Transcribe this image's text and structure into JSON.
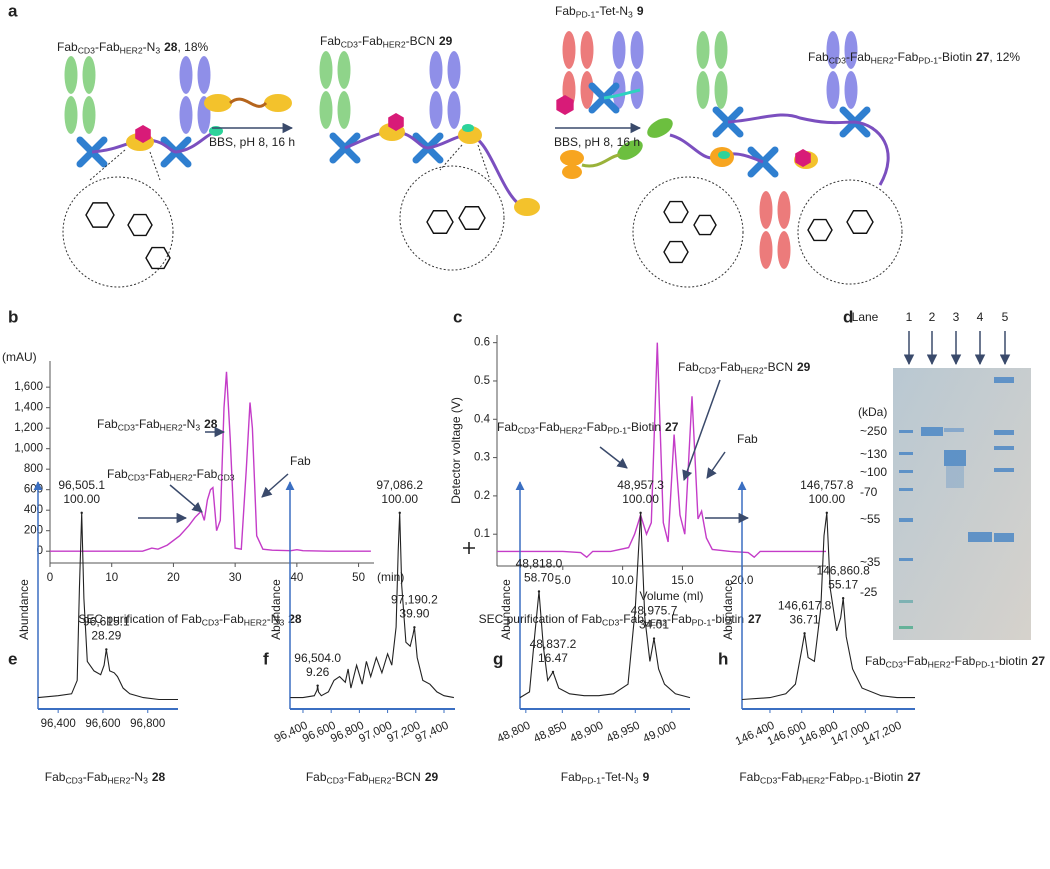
{
  "panel_letters": [
    "a",
    "b",
    "c",
    "d",
    "e",
    "f",
    "g",
    "h"
  ],
  "scheme": {
    "compounds": [
      {
        "parts": [
          "Fab",
          "CD3",
          "-Fab",
          "HER2",
          "-N",
          "3"
        ],
        "num": "28",
        "tail": ", 18%"
      },
      {
        "parts": [
          "Fab",
          "CD3",
          "-Fab",
          "HER2",
          "-BCN"
        ],
        "num": "29"
      },
      {
        "parts": [
          "Fab",
          "PD-1",
          "-Tet-N",
          "3"
        ],
        "num": "9"
      },
      {
        "parts": [
          "Fab",
          "CD3",
          "-Fab",
          "HER2",
          "-Fab",
          "PD-1",
          "-Biotin"
        ],
        "num": "27",
        "tail": ", 12%"
      }
    ],
    "conditions": [
      "BBS, pH 8, 16 h",
      "BBS, pH 8, 16 h"
    ]
  },
  "chart_data": [
    {
      "type": "line",
      "ylabel": "(mAU)",
      "xlabel": "(min)",
      "color": "#c43cc8",
      "xlim": [
        0,
        52.5
      ],
      "ylim": [
        -115,
        1855
      ],
      "xticks": [
        0,
        10,
        20,
        30,
        40,
        50
      ],
      "yticks": [
        0,
        200,
        400,
        600,
        800,
        {
          "value": 1000,
          "label": "1,000"
        },
        {
          "value": 1200,
          "label": "1,200"
        },
        {
          "value": 1400,
          "label": "1,400"
        },
        {
          "value": 1600,
          "label": "1,600"
        }
      ],
      "x": [
        0,
        15,
        16.5,
        17.5,
        19,
        21,
        22.5,
        23.5,
        24.5,
        25,
        25.5,
        26,
        26.4,
        27,
        27.6,
        28.2,
        28.6,
        29.2,
        30,
        31,
        31.8,
        32.4,
        32.8,
        33.5,
        34.5,
        36,
        39,
        40,
        41,
        45,
        52
      ],
      "values": [
        0,
        0,
        30,
        20,
        60,
        150,
        250,
        330,
        390,
        300,
        500,
        600,
        620,
        200,
        300,
        1400,
        1750,
        1100,
        30,
        20,
        800,
        1450,
        1200,
        150,
        20,
        10,
        5,
        15,
        5,
        0,
        0
      ],
      "annotations": [
        {
          "parts": [
            "Fab",
            "CD3",
            "-Fab",
            "HER2",
            "-N",
            "3"
          ],
          "num": "28"
        },
        {
          "parts": [
            "Fab",
            "CD3",
            "-Fab",
            "HER2",
            "-Fab",
            "CD3"
          ]
        },
        {
          "parts": [
            "Fab"
          ]
        }
      ],
      "caption": {
        "parts": [
          "SEC purification of Fab",
          "CD3",
          "-Fab",
          "HER2",
          "-N",
          "3"
        ],
        "num": "28"
      }
    },
    {
      "type": "line",
      "ylabel": "Detector voltage (V)",
      "xlabel": "Volume (ml)",
      "color": "#c43cc8",
      "xlim": [
        -0.5,
        27
      ],
      "ylim": [
        0.017,
        0.62
      ],
      "xticks": [
        {
          "value": 5,
          "label": "5.0"
        },
        {
          "value": 10,
          "label": "10.0"
        },
        {
          "value": 15,
          "label": "15.0"
        },
        {
          "value": 20,
          "label": "20.0"
        }
      ],
      "yticks": [
        0.1,
        0.2,
        0.3,
        0.4,
        0.5,
        0.6
      ],
      "x": [
        -0.5,
        5,
        6.5,
        7,
        7.5,
        9,
        10.5,
        11,
        11.5,
        12,
        12.4,
        12.9,
        13.4,
        13.8,
        14.3,
        14.8,
        15.2,
        15.8,
        16.3,
        16.6,
        17,
        17.5,
        19,
        20.5,
        21,
        21.5,
        27
      ],
      "values": [
        0.055,
        0.055,
        0.052,
        0.04,
        0.055,
        0.055,
        0.065,
        0.1,
        0.15,
        0.1,
        0.13,
        0.6,
        0.13,
        0.08,
        0.36,
        0.15,
        0.1,
        0.46,
        0.14,
        0.16,
        0.09,
        0.06,
        0.055,
        0.052,
        0.04,
        0.055,
        0.055
      ],
      "annotations": [
        {
          "parts": [
            "Fab",
            "CD3",
            "-Fab",
            "HER2",
            "-BCN"
          ],
          "num": "29"
        },
        {
          "parts": [
            "Fab",
            "CD3",
            "-Fab",
            "HER2",
            "-Fab",
            "PD-1",
            "-Biotin"
          ],
          "num": "27"
        },
        {
          "parts": [
            "Fab"
          ]
        }
      ],
      "caption": {
        "parts": [
          "SEC purification of Fab",
          "CD3",
          "-Fab",
          "HER2",
          "-Fab",
          "PD-1",
          "-biotin"
        ],
        "num": "27"
      }
    },
    {
      "type": "line",
      "ylabel": "Abundance",
      "color": "#222222",
      "xlim": [
        96310,
        96935
      ],
      "ylim": [
        -3,
        112
      ],
      "xticks": [
        {
          "value": 96400,
          "label": "96,400"
        },
        {
          "value": 96600,
          "label": "96,600"
        },
        {
          "value": 96800,
          "label": "96,800"
        }
      ],
      "x": [
        96310,
        96400,
        96460,
        96485,
        96495,
        96505.1,
        96515,
        96530,
        96560,
        96590,
        96605,
        96615.1,
        96630,
        96650,
        96665,
        96690,
        96720,
        96780,
        96850,
        96935
      ],
      "values": [
        3,
        4,
        5,
        12,
        60,
        100,
        55,
        22,
        17,
        15,
        20,
        28.29,
        17,
        16,
        14,
        8,
        5,
        3,
        2,
        2
      ],
      "peaks": {
        "x": [
          96505.1,
          96615.1
        ],
        "x_labels": [
          "96,505.1",
          "96,615.1"
        ],
        "values": [
          100,
          28.29
        ],
        "value_labels": [
          "100.00",
          "28.29"
        ]
      },
      "caption": {
        "parts": [
          "Fab",
          "CD3",
          "-Fab",
          "HER2",
          "-N",
          "3"
        ],
        "num": "28"
      }
    },
    {
      "type": "line",
      "ylabel": "Abundance",
      "color": "#222222",
      "xlim": [
        96308,
        97478
      ],
      "ylim": [
        -3,
        112
      ],
      "xticks": [
        {
          "value": 96400,
          "label": "96,400"
        },
        {
          "value": 96600,
          "label": "96,600"
        },
        {
          "value": 96800,
          "label": "96,800"
        },
        {
          "value": 97000,
          "label": "97,000"
        },
        {
          "value": 97200,
          "label": "97,200"
        },
        {
          "value": 97400,
          "label": "97,400"
        }
      ],
      "x": [
        96310,
        96400,
        96480,
        96500,
        96504,
        96510,
        96530,
        96580,
        96620,
        96660,
        96700,
        96720,
        96740,
        96780,
        96820,
        96850,
        96880,
        96920,
        96960,
        97000,
        97030,
        97060,
        97075,
        97086.2,
        97100,
        97130,
        97160,
        97180,
        97190.2,
        97210,
        97250,
        97300,
        97350,
        97400,
        97470
      ],
      "values": [
        3,
        3,
        4,
        7,
        9.26,
        6,
        4,
        6,
        12,
        14,
        11,
        18,
        8,
        20,
        10,
        22,
        14,
        24,
        16,
        26,
        20,
        40,
        80,
        100,
        62,
        32,
        30,
        36,
        39.9,
        24,
        12,
        10,
        6,
        4,
        3
      ],
      "peaks": {
        "x": [
          96504.0,
          97086.2,
          97190.2
        ],
        "x_labels": [
          "96,504.0",
          "97,086.2",
          "97,190.2"
        ],
        "values": [
          9.26,
          100,
          39.9
        ],
        "value_labels": [
          "9.26",
          "100.00",
          "39.90"
        ]
      },
      "caption": {
        "parts": [
          "Fab",
          "CD3",
          "-Fab",
          "HER2",
          "-BCN"
        ],
        "num": "29"
      }
    },
    {
      "type": "line",
      "ylabel": "Abundance",
      "color": "#222222",
      "xlim": [
        48792,
        49025
      ],
      "ylim": [
        -3,
        112
      ],
      "xticks": [
        {
          "value": 48800,
          "label": "48,800"
        },
        {
          "value": 48850,
          "label": "48,850"
        },
        {
          "value": 48900,
          "label": "48,900"
        },
        {
          "value": 48950,
          "label": "48,950"
        },
        {
          "value": 49000,
          "label": "49,000"
        }
      ],
      "x": [
        48792,
        48805,
        48812,
        48818,
        48824,
        48830,
        48837.2,
        48845,
        48860,
        48880,
        48900,
        48920,
        48940,
        48950,
        48957.3,
        48963,
        48970,
        48975.7,
        48982,
        48990,
        49005,
        49025
      ],
      "values": [
        3,
        6,
        35,
        58.7,
        30,
        12,
        16.47,
        8,
        5,
        4,
        4,
        5,
        10,
        50,
        100,
        45,
        22,
        34.01,
        18,
        10,
        5,
        3
      ],
      "peaks": {
        "x": [
          48818.0,
          48837.2,
          48957.3,
          48975.7
        ],
        "x_labels": [
          "48,818.0",
          "48,837.2",
          "48,957.3",
          "48,975.7"
        ],
        "values": [
          58.7,
          16.47,
          100,
          34.01
        ],
        "value_labels": [
          "58.70",
          "16.47",
          "100.00",
          "34.01"
        ]
      },
      "caption": {
        "parts": [
          "Fab",
          "PD-1",
          "-Tet-N",
          "3"
        ],
        "num": "9"
      }
    },
    {
      "type": "line",
      "ylabel": "Abundance",
      "color": "#222222",
      "xlim": [
        146224,
        147313
      ],
      "ylim": [
        -3,
        112
      ],
      "xticks": [
        {
          "value": 146400,
          "label": "146,400"
        },
        {
          "value": 146600,
          "label": "146,600"
        },
        {
          "value": 146800,
          "label": "146,800"
        },
        {
          "value": 147000,
          "label": "147,000"
        },
        {
          "value": 147200,
          "label": "147,200"
        }
      ],
      "x": [
        146224,
        146400,
        146500,
        146560,
        146600,
        146617.8,
        146640,
        146680,
        146720,
        146740,
        146757.8,
        146780,
        146820,
        146845,
        146860.8,
        146880,
        146920,
        146980,
        147100,
        147200,
        147313
      ],
      "values": [
        2,
        3,
        5,
        10,
        28,
        36.71,
        24,
        22,
        50,
        88,
        100,
        60,
        38,
        45,
        55.17,
        35,
        18,
        8,
        4,
        3,
        3
      ],
      "peaks": {
        "x": [
          146617.8,
          146757.8,
          146860.8
        ],
        "x_labels": [
          "146,617.8",
          "146,757.8",
          "146,860.8"
        ],
        "values": [
          36.71,
          100,
          55.17
        ],
        "value_labels": [
          "36.71",
          "100.00",
          "55.17"
        ]
      },
      "caption": {
        "parts": [
          "Fab",
          "CD3",
          "-Fab",
          "HER2",
          "-Fab",
          "PD-1",
          "-Biotin"
        ],
        "num": "27"
      }
    }
  ],
  "gel": {
    "lane_title": "Lane",
    "lanes": [
      "1",
      "2",
      "3",
      "4",
      "5"
    ],
    "unit": "(kDa)",
    "markers": [
      "~250",
      "~130",
      "~100",
      "-70",
      "~55",
      "~35",
      "-25"
    ],
    "marker_colors": [
      "#222222",
      "#222222",
      "#222222",
      "#e07b2a",
      "#222222",
      "#222222",
      "#e07b2a"
    ],
    "caption": {
      "parts": [
        "Fab",
        "CD3",
        "-Fab",
        "HER2",
        "-Fab",
        "PD-1",
        "-biotin"
      ],
      "num": "27"
    }
  }
}
